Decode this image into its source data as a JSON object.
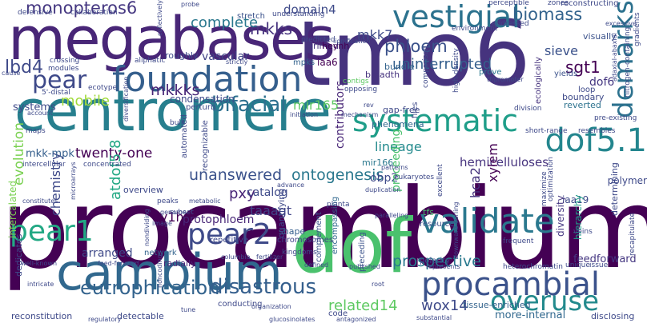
{
  "words": {
    "tmo6": "tmo6",
    "procambium": "procambium",
    "megabases": "megabases",
    "centromere": "centromere",
    "dof": "dof",
    "cambium": "cambium",
    "foundation": "foundation",
    "vestigial": "vestigial",
    "systematic": "systematic",
    "validate": "validate",
    "procambial": "procambial",
    "dof5_1": "dof5.1",
    "pear": "pear",
    "pear1": "pear1",
    "pear2": "pear2",
    "overuse": "overuse",
    "demarks": "demarks",
    "bifacial": "bifacial",
    "monopteros6": "monopteros6",
    "phloem": "phloem",
    "biomass": "biomass",
    "eutrophication": "eutrophication",
    "disastrous": "disastrous",
    "unanswered": "unanswered",
    "ontogenesis": "ontogenesis",
    "prospective": "prospective",
    "wox14": "wox14",
    "related14": "related14",
    "uninterrupted": "uninterrupted",
    "mkk7": "mkk7",
    "mkks": "mkks",
    "mkkks": "mkkks",
    "lbd4": "lbd4",
    "complete": "complete",
    "domain4": "domain4",
    "sgt1": "sgt1",
    "sieve": "sieve",
    "mobile": "mobile",
    "vascular": "vascular",
    "mir165": "mir165",
    "systems": "systems",
    "evolution": "evolution",
    "chemistry": "chemistry",
    "twenty_one": "twenty-one",
    "mkk_mpk": "mkk-mpk",
    "ey1h": "ey1h",
    "pxy": "pxy",
    "catalog": "catalog",
    "taaagt": "taaagt",
    "protophloem": "protophloem",
    "arranged": "arranged",
    "lineage": "lineage",
    "hemicelluloses": "hemicelluloses",
    "obp2": "obp2",
    "proceeding": "proceeding",
    "contributors": "contributors",
    "dof6": "dof6",
    "xylem": "xylem",
    "hca2": "hca2",
    "more_internal": "more-internal",
    "feedforward": "feedforward",
    "tissue_enriched": "tissue-enriched",
    "atdof5_8": "atdof5.8",
    "intercalated": "intercalated",
    "dedicates": "dedicates",
    "reconstitution": "reconstitution",
    "detectable": "detectable",
    "gap_free": "gap-free",
    "bundle": "bundle",
    "breadth": "breadth",
    "boundary": "boundary",
    "reverted": "reverted",
    "determining": "determining",
    "polymer": "polymer",
    "iaa19": "iaa19",
    "hierarchy": "hierarchy",
    "diversity": "diversity",
    "quantifying": "quantifying",
    "chromosomes": "chromosomes",
    "network": "network",
    "radially": "radially",
    "shape": "shape",
    "overview": "overview",
    "primed": "primed",
    "heynh": "heynh",
    "iaa6": "iaa6",
    "mpks": "mpks",
    "roughly": "roughly",
    "condensation": "condensation",
    "phenomena": "phenomena",
    "mir166": "mir166",
    "tfs": "tfs",
    "resource": "resource",
    "complement": "complement",
    "encompassing": "encompassing",
    "preceding": "preceding",
    "code": "code",
    "polarity": "polarity",
    "conducting": "conducting",
    "repetitive": "repetitive",
    "recognizable": "recognizable",
    "automated": "automated",
    "perturb": "perturb",
    "ecologically": "ecologically",
    "files": "files",
    "loop": "loop",
    "prove": "prove",
    "visually": "visually",
    "yields": "yields",
    "stretch": "stretch",
    "defensive": "defensive",
    "collaboration": "collaboration",
    "modules": "modules",
    "crossing": "crossing",
    "aliphatic": "aliphatic",
    "understanding": "understanding",
    "predicted": "predicted",
    "environment": "environment",
    "addressed": "addressed",
    "reconstructing": "reconstructing",
    "zones": "zones",
    "perceptible": "perceptible",
    "distal_5": "5'-distal",
    "ecotype": "ecotype",
    "contigs": "contigs",
    "opposing": "opposing",
    "comparison": "comparison",
    "high_density": "high-density",
    "bulk": "bulk",
    "maps": "maps",
    "concentrated": "concentrated",
    "intercellular": "intercellular",
    "peaks": "peaks",
    "subset": "subset",
    "kingdoms": "kingdoms",
    "planta": "planta",
    "excellent": "excellent",
    "maximize": "maximize",
    "optimization": "optimization",
    "unique": "unique",
    "veins": "veins",
    "frequent": "frequent",
    "heterochromatin": "heterochromatin",
    "resembles": "resembles",
    "short_range": "short-range",
    "division": "division",
    "pre_existing": "pre-existing",
    "nitrogen_containing": "nitrogen-containing",
    "recapitulate": "recapitulate",
    "issue": "issue",
    "disclosing": "disclosing",
    "substantial": "substantial",
    "antagonized": "antagonized",
    "glucosinolates": "glucosinolates",
    "organization": "organization",
    "well_known": "well-known",
    "intricate": "intricate",
    "regulatory": "regulatory",
    "tune": "tune",
    "genome": "genome",
    "image": "image",
    "advance": "advance",
    "defined": "defined",
    "published": "published",
    "root": "root",
    "paralleling": "paralleling",
    "downward_curling": "downward-curling",
    "represents": "represents",
    "noncoding": "noncoding",
    "nondividing": "nondividing",
    "microarrays": "microarrays",
    "constitutes": "constitutes",
    "diversification": "diversification",
    "metabolic": "metabolic",
    "feed_forward": "feed-forward",
    "columbia": "columbia",
    "fertilizer": "fertilizer",
    "gradients": "gradients",
    "adaxial_abaxial": "adaxial-abaxial",
    "excessive": "excessive",
    "strictly": "strictly",
    "lignification": "lignification",
    "probe": "probe",
    "collectively": "collectively",
    "cause": "cause",
    "tf_promoter": "tf/promoter",
    "eukaryotes": "eukaryotes",
    "duplication": "duplication",
    "patterns": "patterns",
    "account": "account",
    "initiation": "initiation",
    "rev": "rev",
    "mechanism": "mechanism"
  },
  "palette": {
    "dark_purple": "#440154",
    "indigo": "#46337e",
    "blue": "#365c8d",
    "steel": "#277f8e",
    "teal": "#1fa187",
    "green": "#4ac16d",
    "lime": "#a0da39",
    "yellow": "#fde725",
    "background": "#ffffff"
  }
}
